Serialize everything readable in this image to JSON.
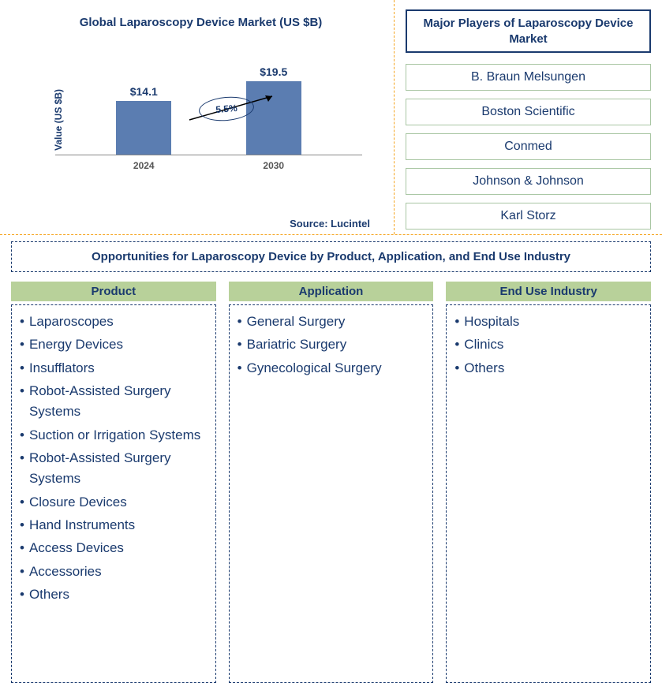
{
  "chart": {
    "title": "Global Laparoscopy Device Market (US $B)",
    "y_label": "Value (US $B)",
    "type": "bar",
    "bars": [
      {
        "year": "2024",
        "value_label": "$14.1",
        "height_pct": 62
      },
      {
        "year": "2030",
        "value_label": "$19.5",
        "height_pct": 85
      }
    ],
    "bar_color": "#5b7db1",
    "growth_label": "5.5%",
    "axis_color": "#888888",
    "title_color": "#1a3a6e",
    "source": "Source: Lucintel",
    "arrow_color": "#000000",
    "ellipse_stroke": "#1a3a6e"
  },
  "players": {
    "title": "Major Players of Laparoscopy Device Market",
    "items": [
      "B. Braun Melsungen",
      "Boston Scientific",
      "Conmed",
      "Johnson & Johnson",
      "Karl Storz"
    ],
    "box_border": "#a9c6a3",
    "title_border": "#1a3a6e"
  },
  "opportunities": {
    "title": "Opportunities for Laparoscopy Device by Product, Application, and End Use Industry",
    "columns": [
      {
        "header": "Product",
        "items": [
          "Laparoscopes",
          "Energy Devices",
          "Insufflators",
          "Robot-Assisted Surgery Systems",
          "Suction or Irrigation Systems",
          "Robot-Assisted Surgery Systems",
          "Closure Devices",
          "Hand Instruments",
          "Access Devices",
          "Accessories",
          "Others"
        ]
      },
      {
        "header": "Application",
        "items": [
          "General Surgery",
          "Bariatric Surgery",
          "Gynecological Surgery"
        ]
      },
      {
        "header": "End Use Industry",
        "items": [
          "Hospitals",
          "Clinics",
          "Others"
        ]
      }
    ],
    "header_bg": "#b8d19a",
    "border_color": "#1a3a6e",
    "text_color": "#1a3a6e",
    "bullet": "•"
  },
  "divider_color": "#f5a623"
}
